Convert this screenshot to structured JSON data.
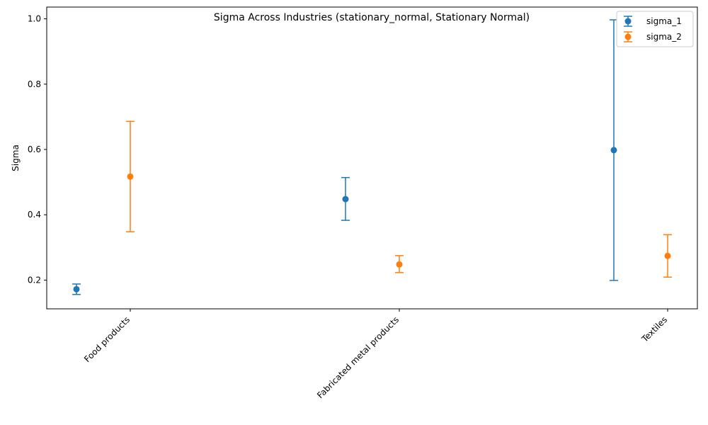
{
  "chart_data": {
    "type": "scatter",
    "title": "Sigma Across Industries (stationary_normal, Stationary Normal)",
    "xlabel": "",
    "ylabel": "Sigma",
    "categories": [
      "Food products",
      "Fabricated metal products",
      "Textiles"
    ],
    "ylim": [
      0.112,
      1.036
    ],
    "yticks": [
      "0.2",
      "0.4",
      "0.6",
      "0.8",
      "1.0"
    ],
    "ytick_values": [
      0.2,
      0.4,
      0.6,
      0.8,
      1.0
    ],
    "legend_position": "top-right",
    "grid": false,
    "series": [
      {
        "name": "sigma_1",
        "color": "#1f77b4",
        "values": [
          0.172,
          0.448,
          0.598
        ],
        "lower": [
          0.156,
          0.383,
          0.199
        ],
        "upper": [
          0.188,
          0.514,
          0.997
        ]
      },
      {
        "name": "sigma_2",
        "color": "#ff7f0e",
        "values": [
          0.517,
          0.248,
          0.274
        ],
        "lower": [
          0.348,
          0.223,
          0.209
        ],
        "upper": [
          0.686,
          0.275,
          0.339
        ]
      }
    ]
  }
}
